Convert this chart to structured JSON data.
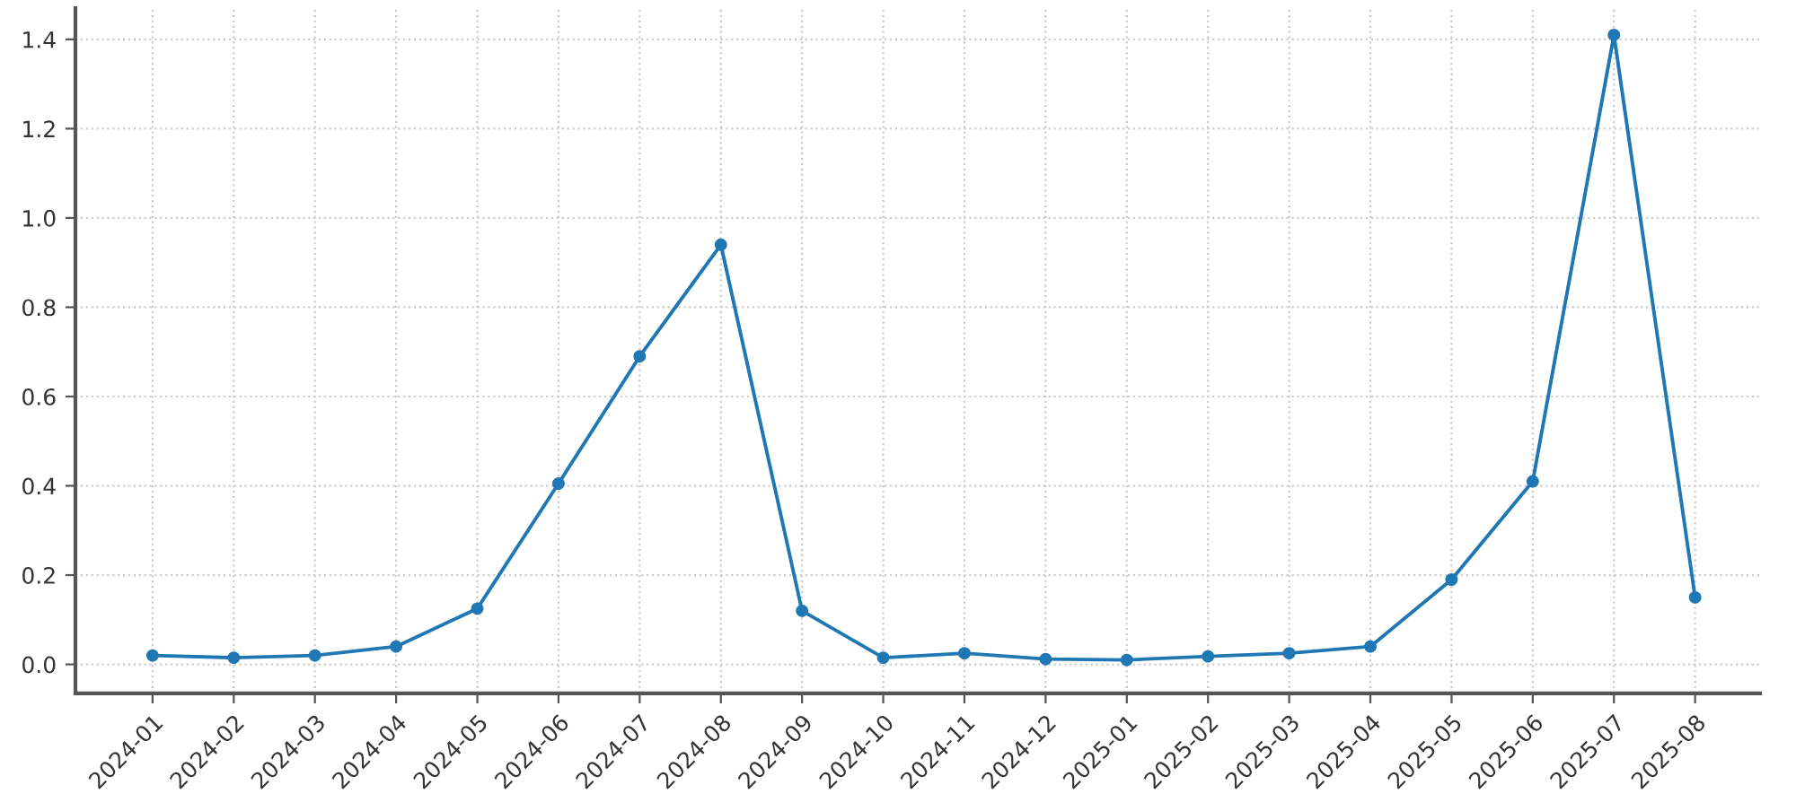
{
  "chart_data": {
    "type": "line",
    "categories": [
      "2024-01",
      "2024-02",
      "2024-03",
      "2024-04",
      "2024-05",
      "2024-06",
      "2024-07",
      "2024-08",
      "2024-09",
      "2024-10",
      "2024-11",
      "2024-12",
      "2025-01",
      "2025-02",
      "2025-03",
      "2025-04",
      "2025-05",
      "2025-06",
      "2025-07",
      "2025-08"
    ],
    "series": [
      {
        "color": "#1f77b4",
        "values": [
          0.02,
          0.015,
          0.02,
          0.04,
          0.125,
          0.405,
          0.69,
          0.94,
          0.12,
          0.015,
          0.025,
          0.012,
          0.01,
          0.018,
          0.025,
          0.04,
          0.19,
          0.41,
          1.41,
          0.15
        ]
      }
    ],
    "ylim": [
      -0.065,
      1.47
    ],
    "yticks": [
      {
        "value": 0,
        "label": "0.0"
      },
      0.2,
      0.4,
      0.6,
      0.8,
      {
        "value": 1,
        "label": "1.0"
      },
      1.2,
      1.4
    ],
    "grid": true,
    "marker": "circle",
    "line_style": "solid"
  }
}
